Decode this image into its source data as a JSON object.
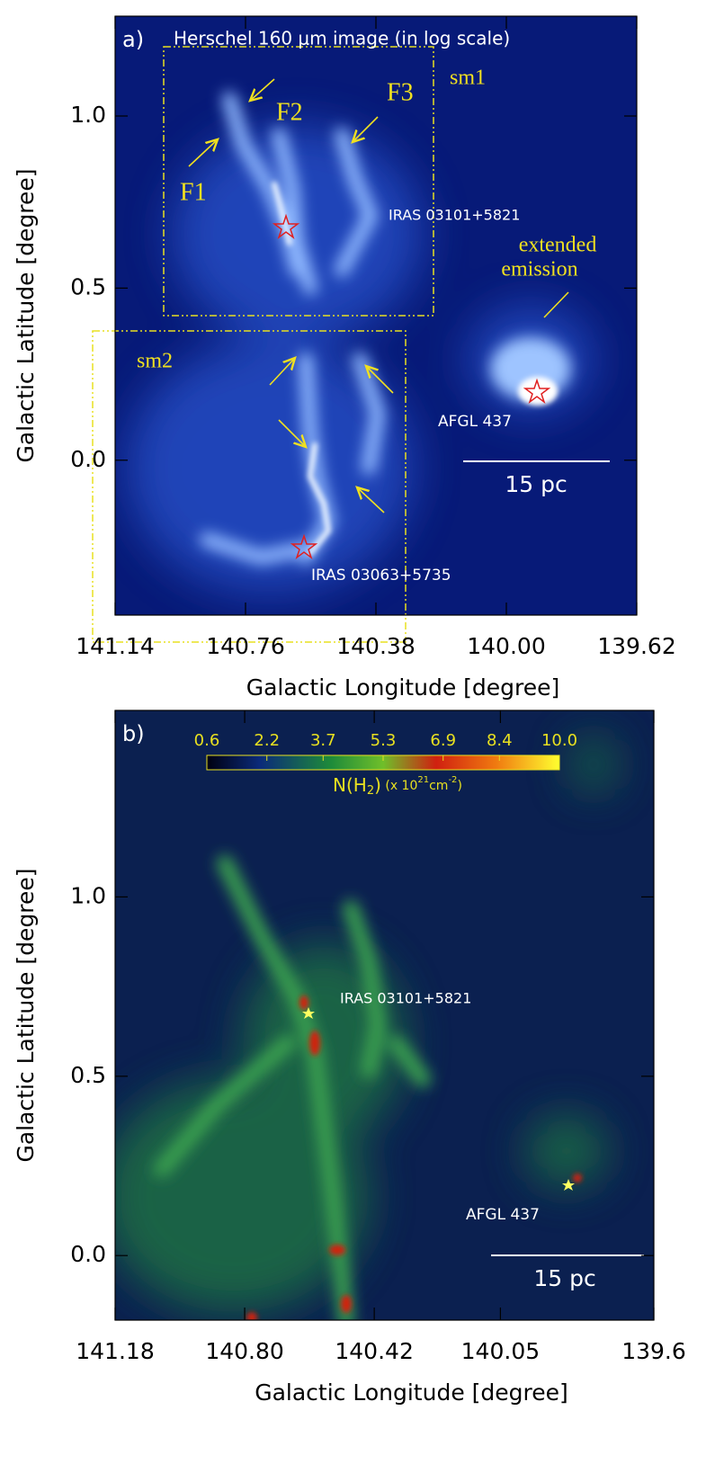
{
  "chart_data": [
    {
      "type": "image",
      "panel_label": "a)",
      "title": "Herschel 160 μm image (in log scale)",
      "x_label": "Galactic Longitude [degree]",
      "y_label": "Galactic Latitude [degree]",
      "xlim": [
        141.14,
        139.62
      ],
      "ylim": [
        -0.45,
        1.29
      ],
      "xticks": [
        141.14,
        140.76,
        140.38,
        {
          "value": 140,
          "label": "140.00"
        },
        139.62
      ],
      "yticks": [
        {
          "value": 0,
          "label": "0.0"
        },
        {
          "value": 0.5,
          "label": "0.5"
        },
        {
          "value": 1,
          "label": "1.0"
        }
      ],
      "annotations": [
        "sm1",
        "sm2",
        "F1",
        "F2",
        "F3",
        "IRAS 03101+5821",
        "extended",
        "emission",
        "AFGL 437",
        "15 pc",
        "IRAS 03063+5735"
      ]
    },
    {
      "type": "image",
      "panel_label": "b)",
      "x_label": "Galactic Longitude [degree]",
      "y_label": "Galactic Latitude [degree]",
      "xlim": [
        141.18,
        139.6
      ],
      "ylim": [
        -0.18,
        1.52
      ],
      "xticks": [
        141.18,
        {
          "value": 140.8,
          "label": "140.80"
        },
        140.42,
        140.05,
        139.6
      ],
      "yticks": [
        {
          "value": 0,
          "label": "0.0"
        },
        {
          "value": 0.5,
          "label": "0.5"
        },
        {
          "value": 1,
          "label": "1.0"
        }
      ],
      "colorbar": {
        "lim": [
          0.6,
          10
        ],
        "ticks": [
          0.6,
          2.2,
          3.7,
          5.3,
          6.9,
          8.4,
          {
            "value": 10,
            "label": "10.0"
          }
        ],
        "label": [
          "N(H",
          "2",
          ")",
          " (x 10",
          "21",
          "cm",
          "-2",
          ")"
        ]
      },
      "annotations": [
        "IRAS 03101+5821",
        "AFGL 437",
        "15 pc"
      ]
    }
  ]
}
